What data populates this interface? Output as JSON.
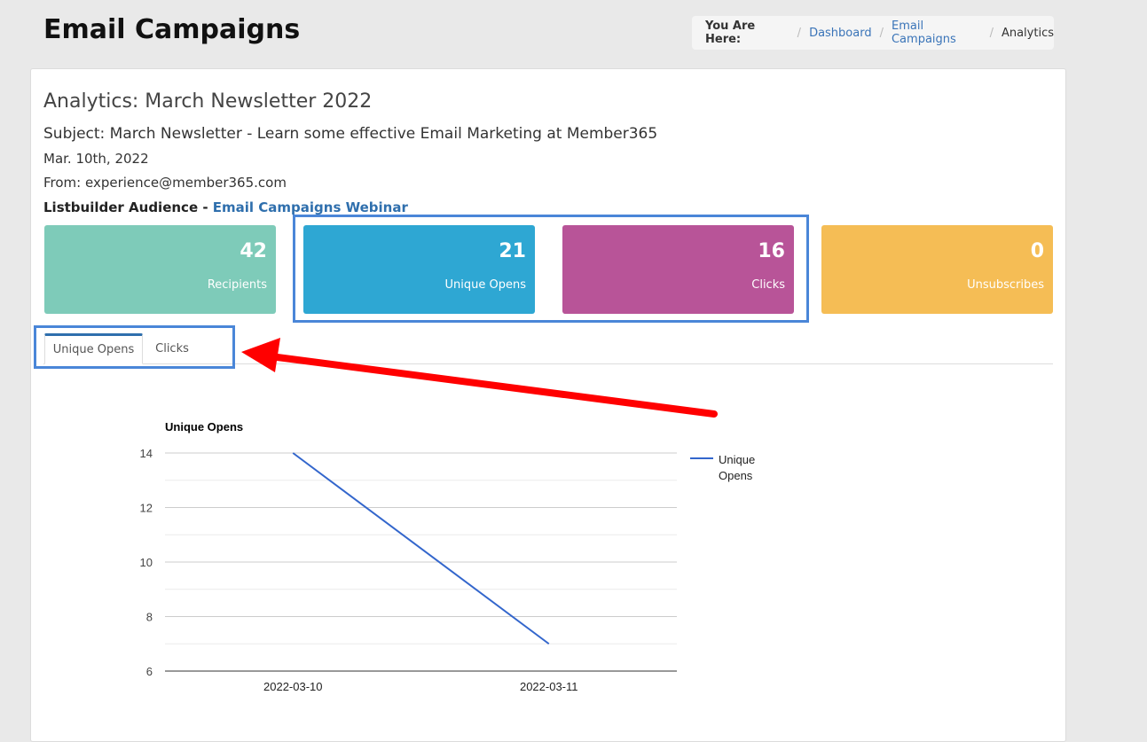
{
  "header": {
    "title": "Email Campaigns"
  },
  "breadcrumb": {
    "label": "You Are Here:",
    "items": [
      "Dashboard",
      "Email Campaigns"
    ],
    "current": "Analytics"
  },
  "campaign": {
    "title": "Analytics: March Newsletter 2022",
    "subject": "Subject: March Newsletter - Learn some effective Email Marketing at Member365",
    "date": "Mar. 10th, 2022",
    "from": "From: experience@member365.com",
    "audience_prefix": "Listbuilder Audience - ",
    "audience_link": "Email Campaigns Webinar"
  },
  "stats": [
    {
      "value": "42",
      "label": "Recipients",
      "color": "#7ecbb9"
    },
    {
      "value": "21",
      "label": "Unique Opens",
      "color": "#2ea7d3"
    },
    {
      "value": "16",
      "label": "Clicks",
      "color": "#b85498"
    },
    {
      "value": "0",
      "label": "Unsubscribes",
      "color": "#f5bd55"
    }
  ],
  "tabs": {
    "active": "Unique Opens",
    "inactive": "Clicks"
  },
  "chart_data": {
    "type": "line",
    "title": "Unique Opens",
    "x": [
      "2022-03-10",
      "2022-03-11"
    ],
    "series": [
      {
        "name": "Unique Opens",
        "values": [
          14,
          7
        ],
        "color": "#3366cc"
      }
    ],
    "ylim": [
      6,
      14
    ],
    "yticks": [
      6,
      8,
      10,
      12,
      14
    ],
    "grid": true,
    "legend": "right"
  },
  "colors": {
    "highlight": "#4a86d8",
    "arrow": "#ff0000",
    "link": "#3a74b8"
  }
}
